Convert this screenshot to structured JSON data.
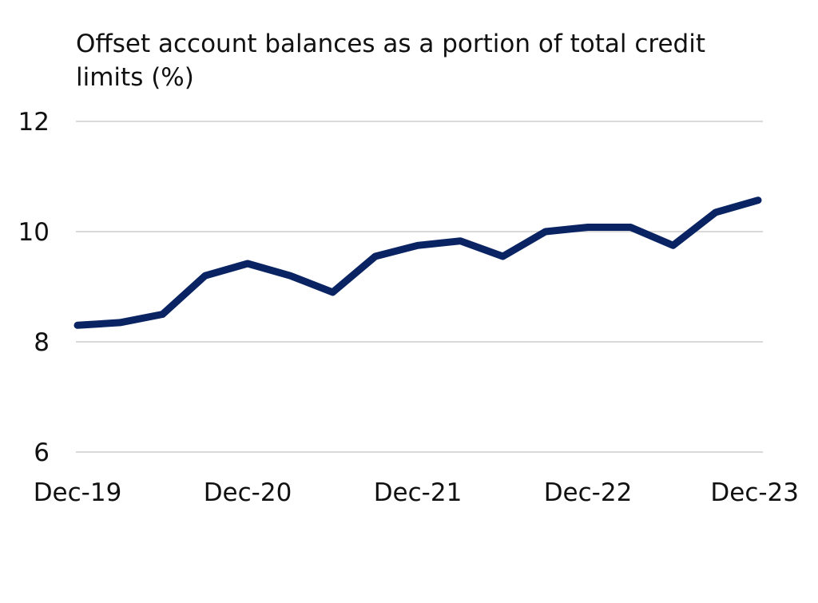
{
  "chart_data": {
    "type": "line",
    "title": "Offset account balances as a portion of total credit limits (%)",
    "xlabel": "",
    "ylabel": "",
    "x": [
      "Dec-19",
      "Mar-20",
      "Jun-20",
      "Sep-20",
      "Dec-20",
      "Mar-21",
      "Jun-21",
      "Sep-21",
      "Dec-21",
      "Mar-22",
      "Jun-22",
      "Sep-22",
      "Dec-22",
      "Mar-23",
      "Jun-23",
      "Sep-23",
      "Dec-23"
    ],
    "x_tick_labels": [
      "Dec-19",
      "Dec-20",
      "Dec-21",
      "Dec-22",
      "Dec-23"
    ],
    "ylim": [
      6,
      12
    ],
    "y_ticks": [
      6,
      8,
      10,
      12
    ],
    "grid": true,
    "series": [
      {
        "color": "#0a2463",
        "values": [
          8.3,
          8.35,
          8.5,
          9.2,
          9.42,
          9.2,
          8.9,
          9.55,
          9.75,
          9.83,
          9.55,
          10.0,
          10.08,
          10.08,
          9.75,
          10.35,
          10.57
        ]
      }
    ]
  }
}
